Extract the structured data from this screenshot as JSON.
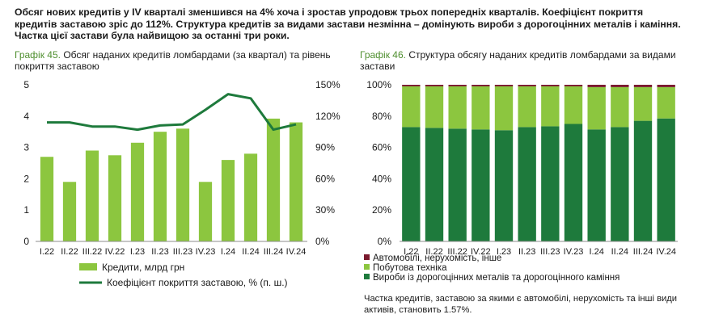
{
  "headline": "Обсяг нових кредитів у IV кварталі зменшився на 4% хоча і зростав упродовж трьох попередніх кварталів. Коефіцієнт покриття кредитів заставою зріс до 112%. Структура кредитів за видами застави незмінна – домінують вироби з дорогоцінних металів і каміння. Частка цієї застави була найвищою за останні три роки.",
  "chart45": {
    "title_num": "Графік 45.",
    "title_text": " Обсяг наданих кредитів ломбардами (за квартал) та рівень покриття заставою"
  },
  "chart46": {
    "title_num": "Графік 46.",
    "title_text": " Структура обсягу наданих кредитів ломбардами за видами застави"
  },
  "note": "Частка кредитів, заставою за якими є автомобілі, нерухомість та інші види активів, становить 1.57%.",
  "colors": {
    "dark_green": "#1e7a3c",
    "light_green": "#8cc63f",
    "maroon": "#7a1a2e",
    "axis": "#8c8c8c"
  },
  "chart_data": [
    {
      "type": "bar",
      "title": "Обсяг наданих кредитів ломбардами (за квартал) та рівень покриття заставою",
      "categories": [
        "I.22",
        "II.22",
        "III.22",
        "IV.22",
        "I.23",
        "II.23",
        "III.23",
        "IV.23",
        "I.24",
        "II.24",
        "III.24",
        "IV.24"
      ],
      "y_ticks": [
        "0",
        "1",
        "2",
        "3",
        "4",
        "5"
      ],
      "y2_ticks": [
        "0%",
        "30%",
        "60%",
        "90%",
        "120%",
        "150%"
      ],
      "ylim": [
        0,
        5
      ],
      "y2lim": [
        0,
        150
      ],
      "series": [
        {
          "name": "Кредити, млрд грн",
          "type": "bar",
          "axis": "left",
          "values": [
            2.7,
            1.9,
            2.9,
            2.75,
            3.15,
            3.5,
            3.6,
            1.9,
            2.6,
            2.8,
            3.92,
            3.8
          ]
        },
        {
          "name": "Коефіцієнт покриття заставою, % (п. ш.)",
          "type": "line",
          "axis": "right",
          "values": [
            114,
            114,
            110,
            110,
            107,
            111,
            112,
            126,
            141,
            137,
            107,
            112
          ]
        }
      ]
    },
    {
      "type": "bar",
      "stacked": true,
      "title": "Структура обсягу наданих кредитів ломбардами за видами застави",
      "categories": [
        "I.22",
        "II.22",
        "III.22",
        "IV.22",
        "I.23",
        "II.23",
        "III.23",
        "IV.23",
        "I.24",
        "II.24",
        "III.24",
        "IV.24"
      ],
      "y_ticks": [
        "0%",
        "20%",
        "40%",
        "60%",
        "80%",
        "100%"
      ],
      "ylim": [
        0,
        100
      ],
      "series": [
        {
          "name": "Вироби із дорогоцінних металів та дорогоцінного каміння",
          "values": [
            73,
            72.5,
            72,
            71.5,
            71,
            73,
            73.5,
            75,
            71.5,
            73,
            77,
            78.5
          ]
        },
        {
          "name": "Побутова техніка",
          "values": [
            26,
            26.5,
            27,
            27.5,
            28,
            26,
            25.5,
            24,
            27,
            25.5,
            21.5,
            20
          ]
        },
        {
          "name": "Автомобілі, нерухомість, інше",
          "values": [
            1,
            1,
            1,
            1,
            1,
            1,
            1,
            1,
            1.5,
            1.5,
            1.5,
            1.5
          ]
        }
      ]
    }
  ]
}
